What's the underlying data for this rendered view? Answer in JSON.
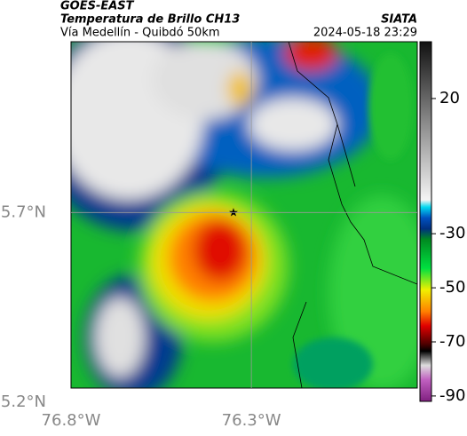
{
  "header": {
    "title": "GOES-EAST",
    "subtitle": "Temperatura de Brillo CH13",
    "location": "Vía Medellín - Quibdó 50km",
    "source": "SIATA",
    "datetime": "2024-05-18 23:29"
  },
  "map": {
    "xlim": [
      -76.8,
      -75.84
    ],
    "ylim": [
      5.2,
      6.15
    ],
    "xticks": [
      {
        "value": -76.8,
        "label": "76.8°W"
      },
      {
        "value": -76.3,
        "label": "76.3°W"
      }
    ],
    "yticks": [
      {
        "value": 5.2,
        "label": "5.2°N"
      },
      {
        "value": 5.7,
        "label": "5.7°N"
      }
    ],
    "colorbar": {
      "lim": [
        -92,
        41
      ],
      "ticks": [
        20,
        -30,
        -50,
        -70,
        -90
      ]
    }
  }
}
